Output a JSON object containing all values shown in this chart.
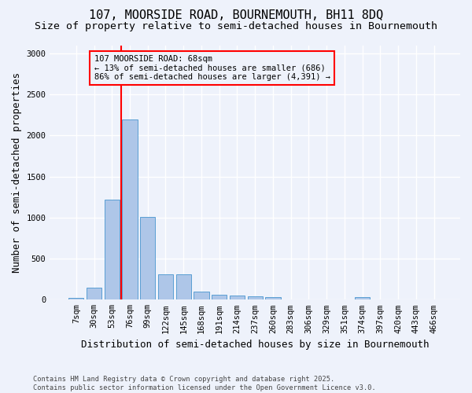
{
  "title_line1": "107, MOORSIDE ROAD, BOURNEMOUTH, BH11 8DQ",
  "title_line2": "Size of property relative to semi-detached houses in Bournemouth",
  "xlabel": "Distribution of semi-detached houses by size in Bournemouth",
  "ylabel": "Number of semi-detached properties",
  "footnote": "Contains HM Land Registry data © Crown copyright and database right 2025.\nContains public sector information licensed under the Open Government Licence v3.0.",
  "categories": [
    "7sqm",
    "30sqm",
    "53sqm",
    "76sqm",
    "99sqm",
    "122sqm",
    "145sqm",
    "168sqm",
    "191sqm",
    "214sqm",
    "237sqm",
    "260sqm",
    "283sqm",
    "306sqm",
    "329sqm",
    "351sqm",
    "374sqm",
    "397sqm",
    "420sqm",
    "443sqm",
    "466sqm"
  ],
  "values": [
    20,
    150,
    1220,
    2200,
    1010,
    310,
    310,
    100,
    60,
    55,
    40,
    30,
    0,
    0,
    0,
    0,
    30,
    0,
    0,
    0,
    0
  ],
  "bar_color": "#aec6e8",
  "bar_edge_color": "#5a9fd4",
  "vline_x_index": 2.5,
  "vline_color": "red",
  "annotation_text": "107 MOORSIDE ROAD: 68sqm\n← 13% of semi-detached houses are smaller (686)\n86% of semi-detached houses are larger (4,391) →",
  "ylim": [
    0,
    3100
  ],
  "yticks": [
    0,
    500,
    1000,
    1500,
    2000,
    2500,
    3000
  ],
  "bg_color": "#eef2fb",
  "grid_color": "#ffffff",
  "title_fontsize": 11,
  "subtitle_fontsize": 9.5,
  "axis_label_fontsize": 9,
  "tick_fontsize": 7.5,
  "annotation_fontsize": 7.5
}
